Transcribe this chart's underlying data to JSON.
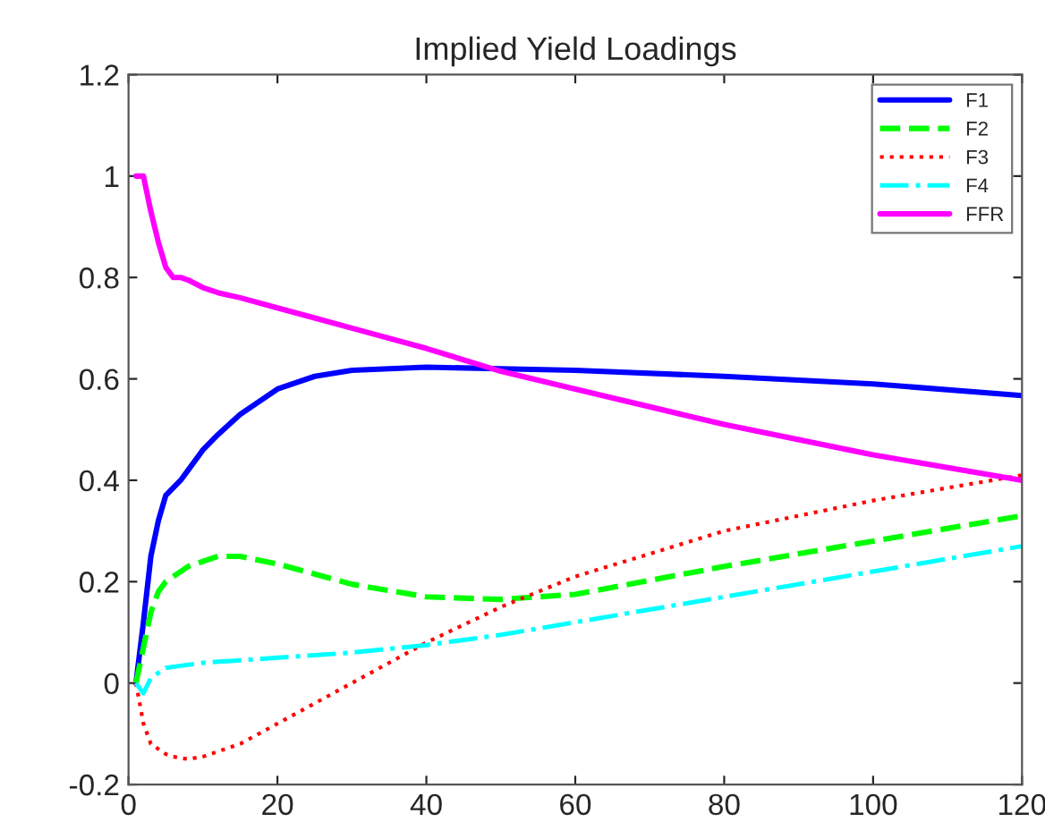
{
  "chart_data": {
    "type": "line",
    "title": "Implied Yield Loadings",
    "x": [
      1,
      2,
      3,
      4,
      5,
      6,
      7,
      8,
      10,
      12,
      15,
      20,
      25,
      30,
      40,
      50,
      60,
      80,
      100,
      120
    ],
    "series": [
      {
        "name": "F1",
        "color": "#0000ff",
        "line_style": "solid",
        "values": [
          0,
          0.12,
          0.25,
          0.32,
          0.37,
          0.385,
          0.4,
          0.42,
          0.46,
          0.49,
          0.53,
          0.58,
          0.605,
          0.617,
          0.623,
          0.62,
          0.617,
          0.605,
          0.59,
          0.567
        ]
      },
      {
        "name": "F2",
        "color": "#00ff00",
        "line_style": "dashed",
        "values": [
          0,
          0.07,
          0.14,
          0.18,
          0.2,
          0.21,
          0.22,
          0.23,
          0.24,
          0.25,
          0.25,
          0.235,
          0.215,
          0.195,
          0.17,
          0.165,
          0.175,
          0.23,
          0.28,
          0.33
        ]
      },
      {
        "name": "F3",
        "color": "#ff0000",
        "line_style": "dotted",
        "values": [
          0,
          -0.08,
          -0.12,
          -0.13,
          -0.14,
          -0.145,
          -0.148,
          -0.15,
          -0.145,
          -0.135,
          -0.12,
          -0.08,
          -0.04,
          0.0,
          0.08,
          0.15,
          0.21,
          0.3,
          0.36,
          0.41
        ]
      },
      {
        "name": "F4",
        "color": "#00ffff",
        "line_style": "dashdot",
        "values": [
          0,
          -0.02,
          0.01,
          0.02,
          0.03,
          0.032,
          0.034,
          0.036,
          0.04,
          0.042,
          0.045,
          0.05,
          0.055,
          0.06,
          0.075,
          0.095,
          0.12,
          0.17,
          0.22,
          0.27
        ]
      },
      {
        "name": "FFR",
        "color": "#ff00ff",
        "line_style": "solid",
        "values": [
          1.0,
          1.0,
          0.93,
          0.87,
          0.82,
          0.8,
          0.8,
          0.795,
          0.78,
          0.77,
          0.76,
          0.74,
          0.72,
          0.7,
          0.66,
          0.615,
          0.58,
          0.51,
          0.45,
          0.4
        ]
      }
    ],
    "xlim": [
      0,
      120
    ],
    "xticks": [
      0,
      20,
      40,
      60,
      80,
      100,
      120
    ],
    "ylim": [
      -0.2,
      1.2
    ],
    "yticks": [
      -0.2,
      0,
      0.2,
      0.4,
      0.6,
      0.8,
      1,
      1.2
    ],
    "grid": false,
    "legend": "top right"
  }
}
